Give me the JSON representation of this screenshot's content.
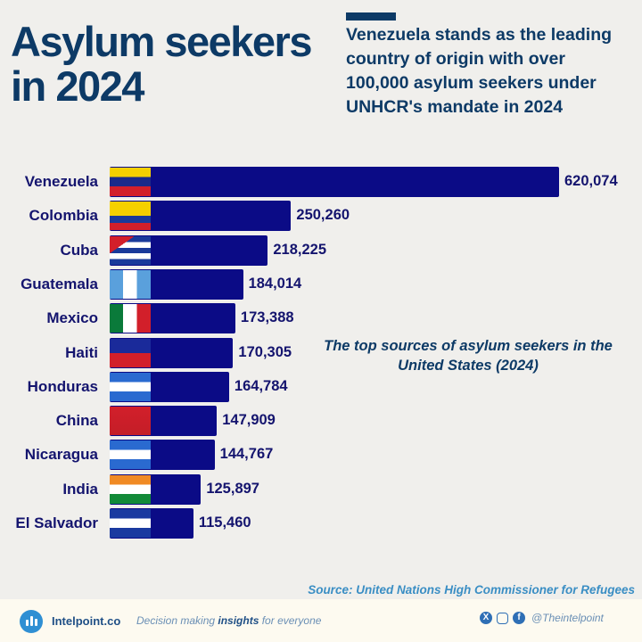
{
  "header": {
    "title": "Asylum seekers in 2024",
    "subtitle": "Venezuela stands as the leading country of origin with over 100,000 asylum seekers under UNHCR's mandate in 2024"
  },
  "chart_data": {
    "type": "bar",
    "orientation": "horizontal",
    "title": "The top sources of asylum seekers in the United States (2024)",
    "categories": [
      "Venezuela",
      "Colombia",
      "Cuba",
      "Guatemala",
      "Mexico",
      "Haiti",
      "Honduras",
      "China",
      "Nicaragua",
      "India",
      "El Salvador"
    ],
    "values": [
      620074,
      250260,
      218225,
      184014,
      173388,
      170305,
      164784,
      147909,
      144767,
      125897,
      115460
    ],
    "value_labels": [
      "620,074",
      "250,260",
      "218,225",
      "184,014",
      "173,388",
      "170,305",
      "164,784",
      "147,909",
      "144,767",
      "125,897",
      "115,460"
    ],
    "bar_color": "#0b0b86",
    "grid": false
  },
  "source": "Source: United Nations High Commissioner for Refugees",
  "footer": {
    "brand": "Intelpoint.co",
    "tagline_pre": "Decision making ",
    "tagline_bold": "insights",
    "tagline_post": " for everyone",
    "handle": "@Theintelpoint",
    "social_icons": [
      "x-icon",
      "instagram-icon",
      "facebook-icon"
    ]
  }
}
